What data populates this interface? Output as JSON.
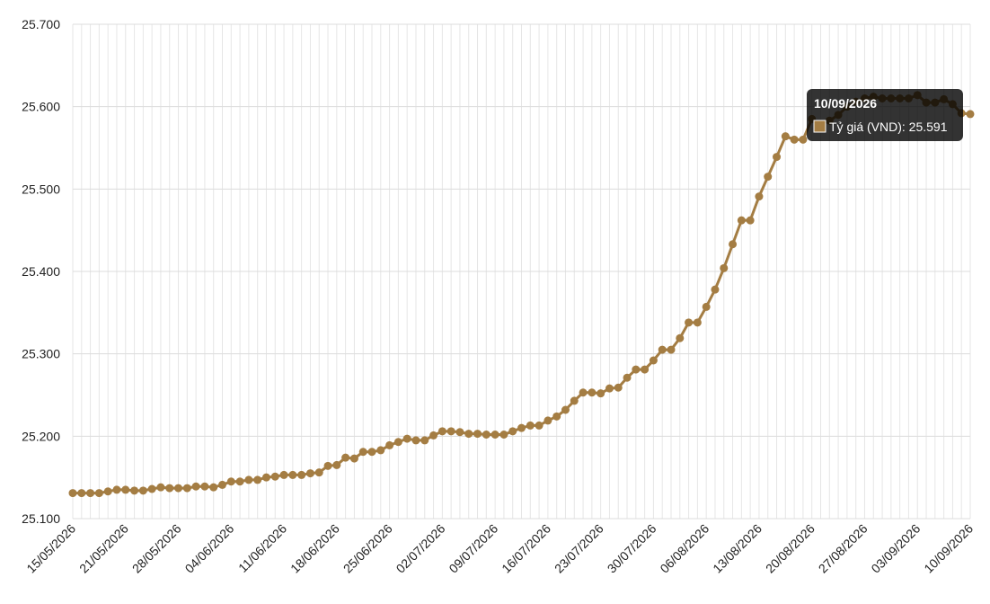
{
  "chart_data": {
    "type": "line",
    "categories": [
      "15/05/2026",
      null,
      null,
      null,
      null,
      null,
      "21/05/2026",
      null,
      null,
      null,
      null,
      null,
      "28/05/2026",
      null,
      null,
      null,
      null,
      null,
      "04/06/2026",
      null,
      null,
      null,
      null,
      null,
      "11/06/2026",
      null,
      null,
      null,
      null,
      null,
      "18/06/2026",
      null,
      null,
      null,
      null,
      null,
      "25/06/2026",
      null,
      null,
      null,
      null,
      null,
      "02/07/2026",
      null,
      null,
      null,
      null,
      null,
      "09/07/2026",
      null,
      null,
      null,
      null,
      null,
      "16/07/2026",
      null,
      null,
      null,
      null,
      null,
      "23/07/2026",
      null,
      null,
      null,
      null,
      null,
      "30/07/2026",
      null,
      null,
      null,
      null,
      null,
      "06/08/2026",
      null,
      null,
      null,
      null,
      null,
      "13/08/2026",
      null,
      null,
      null,
      null,
      null,
      "20/08/2026",
      null,
      null,
      null,
      null,
      null,
      "27/08/2026",
      null,
      null,
      null,
      null,
      null,
      "03/09/2026",
      null,
      null,
      null,
      null,
      null,
      "10/09/2026"
    ],
    "series": [
      {
        "name": "Tỷ giá (VND)",
        "color": "#a47d43",
        "values": [
          25.131,
          25.131,
          25.131,
          25.131,
          25.133,
          25.135,
          25.135,
          25.134,
          25.134,
          25.136,
          25.138,
          25.137,
          25.137,
          25.137,
          25.139,
          25.139,
          25.138,
          25.141,
          25.145,
          25.145,
          25.147,
          25.147,
          25.15,
          25.151,
          25.153,
          25.153,
          25.153,
          25.155,
          25.156,
          25.164,
          25.165,
          25.174,
          25.173,
          25.181,
          25.181,
          25.183,
          25.189,
          25.193,
          25.197,
          25.195,
          25.195,
          25.201,
          25.206,
          25.206,
          25.205,
          25.203,
          25.203,
          25.202,
          25.202,
          25.202,
          25.206,
          25.21,
          25.213,
          25.213,
          25.219,
          25.224,
          25.232,
          25.243,
          25.253,
          25.253,
          25.252,
          25.258,
          25.259,
          25.271,
          25.281,
          25.281,
          25.292,
          25.305,
          25.305,
          25.319,
          25.338,
          25.338,
          25.357,
          25.378,
          25.404,
          25.433,
          25.462,
          25.462,
          25.491,
          25.515,
          25.539,
          25.564,
          25.56,
          25.56,
          25.585,
          25.579,
          25.583,
          25.59,
          25.6,
          25.606,
          25.61,
          25.612,
          25.61,
          25.61,
          25.61,
          25.61,
          25.614,
          25.605,
          25.605,
          25.609,
          25.603,
          25.592,
          25.591
        ]
      }
    ],
    "ylim": [
      25.1,
      25.7
    ],
    "yticks": [
      {
        "value": 25.1,
        "label": "25.100"
      },
      {
        "value": 25.2,
        "label": "25.200"
      },
      {
        "value": 25.3,
        "label": "25.300"
      },
      {
        "value": 25.4,
        "label": "25.400"
      },
      {
        "value": 25.5,
        "label": "25.500"
      },
      {
        "value": 25.6,
        "label": "25.600"
      },
      {
        "value": 25.7,
        "label": "25.700"
      }
    ],
    "grid": true,
    "tooltip": {
      "title": "10/09/2026",
      "text": "Tỷ giá (VND): 25.591"
    }
  }
}
